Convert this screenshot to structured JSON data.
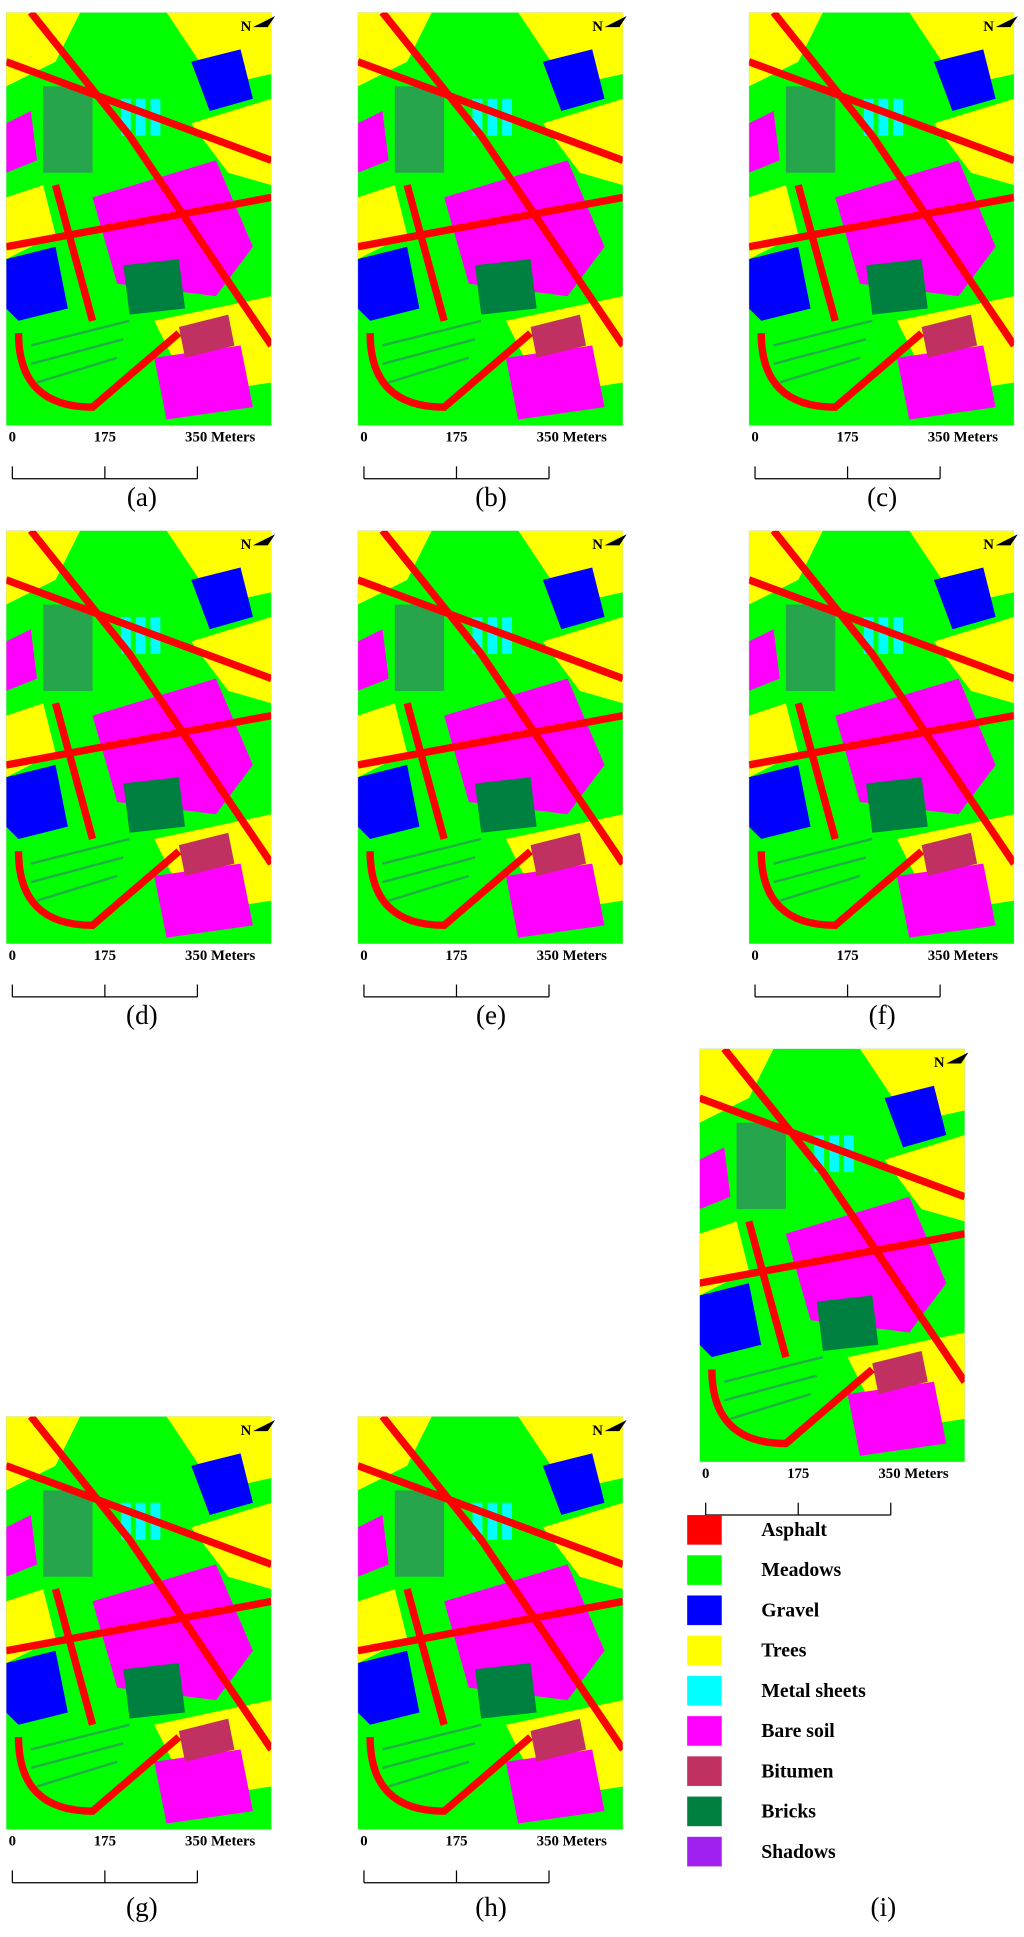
{
  "panels": [
    {
      "label": "(a)",
      "north": "N",
      "scale": {
        "start": "0",
        "mid": "175",
        "end": "350 Meters"
      }
    },
    {
      "label": "(b)",
      "north": "N",
      "scale": {
        "start": "0",
        "mid": "175",
        "end": "350 Meters"
      }
    },
    {
      "label": "(c)",
      "north": "N",
      "scale": {
        "start": "0",
        "mid": "175",
        "end": "350 Meters"
      }
    },
    {
      "label": "(d)",
      "north": "N",
      "scale": {
        "start": "0",
        "mid": "175",
        "end": "350 Meters"
      }
    },
    {
      "label": "(e)",
      "north": "N",
      "scale": {
        "start": "0",
        "mid": "175",
        "end": "350 Meters"
      }
    },
    {
      "label": "(f)",
      "north": "N",
      "scale": {
        "start": "0",
        "mid": "175",
        "end": "350 Meters"
      }
    },
    {
      "label": "(g)",
      "north": "N",
      "scale": {
        "start": "0",
        "mid": "175",
        "end": "350 Meters"
      }
    },
    {
      "label": "(h)",
      "north": "N",
      "scale": {
        "start": "0",
        "mid": "175",
        "end": "350 Meters"
      }
    },
    {
      "label": "(i)",
      "north": "N",
      "scale": {
        "start": "0",
        "mid": "175",
        "end": "350 Meters"
      }
    }
  ],
  "legend": [
    {
      "name": "Asphalt",
      "color": "#ff0000"
    },
    {
      "name": "Meadows",
      "color": "#00ff00"
    },
    {
      "name": "Gravel",
      "color": "#0000ff"
    },
    {
      "name": "Trees",
      "color": "#ffff00"
    },
    {
      "name": "Metal sheets",
      "color": "#00ffff"
    },
    {
      "name": "Bare soil",
      "color": "#ff00ff"
    },
    {
      "name": "Bitumen",
      "color": "#c03060"
    },
    {
      "name": "Bricks",
      "color": "#008040"
    },
    {
      "name": "Shadows",
      "color": "#a020f0"
    }
  ]
}
